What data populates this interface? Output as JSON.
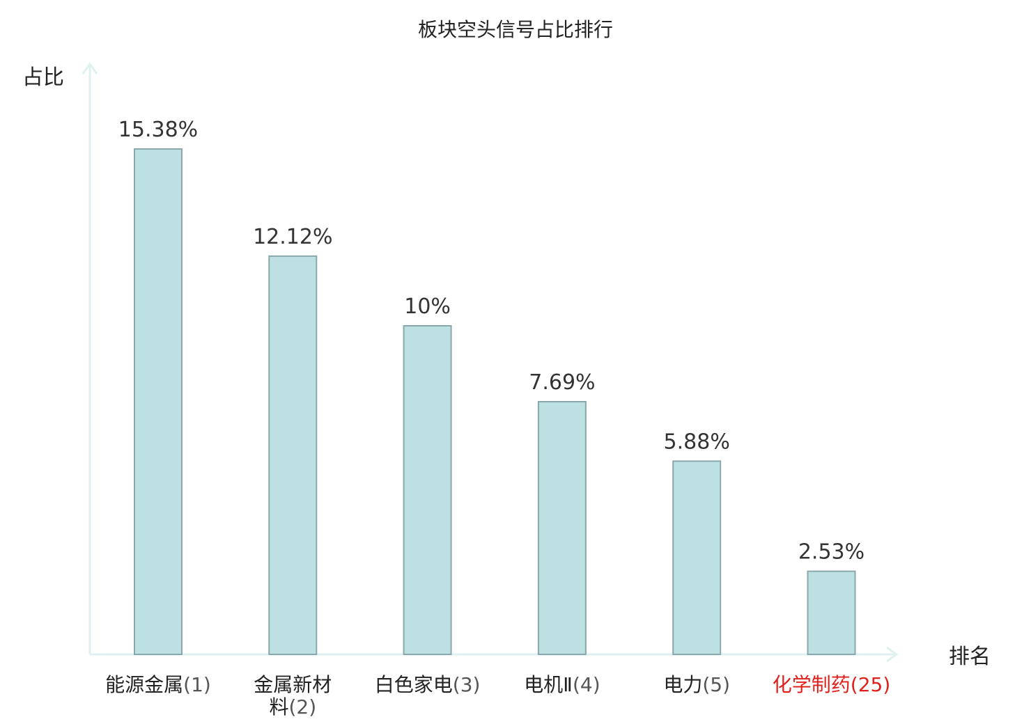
{
  "chart_data": {
    "type": "bar",
    "title": "板块空头信号占比排行",
    "xlabel": "排名",
    "ylabel": "占比",
    "ylim": [
      0,
      16.5
    ],
    "grid": false,
    "categories": [
      {
        "name_lines": [
          "能源金属"
        ],
        "rank": "(1)",
        "highlight": false
      },
      {
        "name_lines": [
          "金属新材",
          "料"
        ],
        "rank": "(2)",
        "highlight": false
      },
      {
        "name_lines": [
          "白色家电"
        ],
        "rank": "(3)",
        "highlight": false
      },
      {
        "name_lines": [
          "电机Ⅱ"
        ],
        "rank": "(4)",
        "highlight": false
      },
      {
        "name_lines": [
          "电力"
        ],
        "rank": "(5)",
        "highlight": false
      },
      {
        "name_lines": [
          "化学制药"
        ],
        "rank": "(25)",
        "highlight": true
      }
    ],
    "values": [
      15.38,
      12.12,
      10,
      7.69,
      5.88,
      2.53
    ],
    "value_labels": [
      "15.38%",
      "12.12%",
      "10%",
      "7.69%",
      "5.88%",
      "2.53%"
    ]
  },
  "colors": {
    "bar_fill": "#bde0e3",
    "bar_stroke": "#8aa8ac",
    "axis": "#dff1ef",
    "highlight_text": "#e0211b",
    "normal_text": "#222222",
    "rank_text": "#555555"
  }
}
